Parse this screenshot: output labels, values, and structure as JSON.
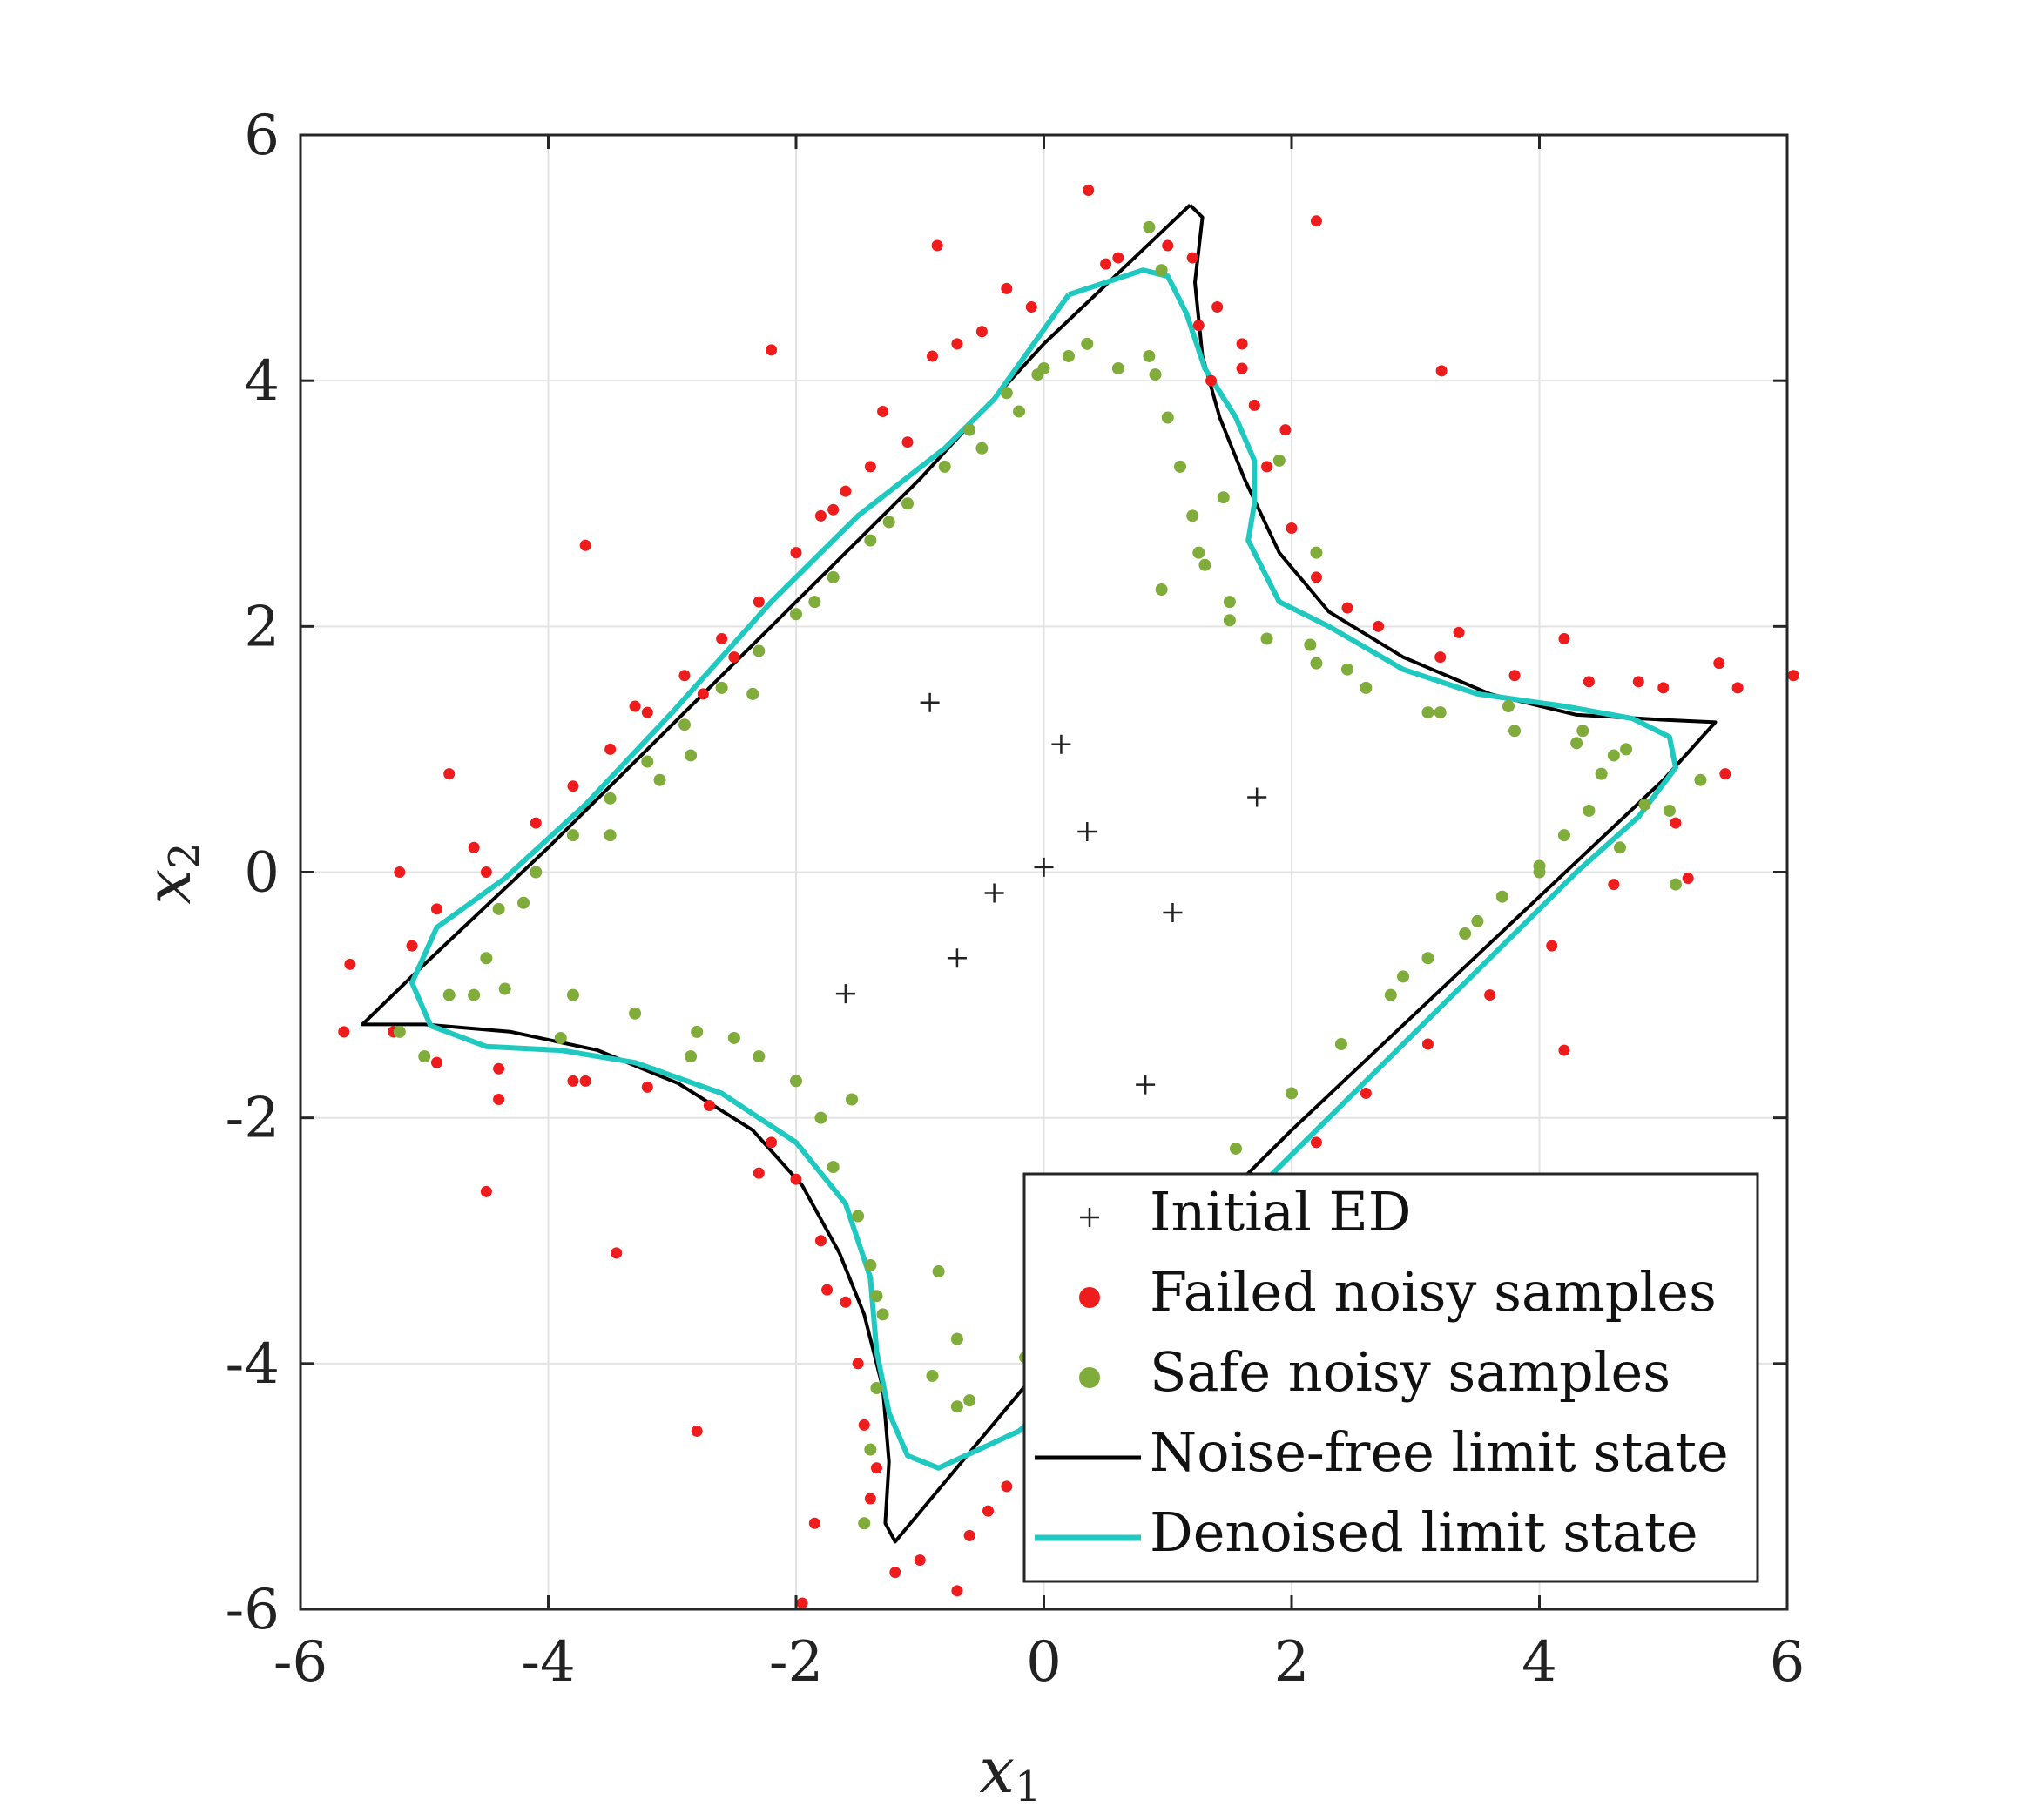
{
  "chart_data": {
    "type": "scatter",
    "title": "",
    "xlabel": "x",
    "xlabel_sub": "1",
    "ylabel": "x",
    "ylabel_sub": "2",
    "xlim": [
      -6,
      6
    ],
    "ylim": [
      -6,
      6
    ],
    "xticks": [
      -6,
      -4,
      -2,
      0,
      2,
      4,
      6
    ],
    "yticks": [
      -6,
      -4,
      -2,
      0,
      2,
      4,
      6
    ],
    "xtick_labels": [
      "-6",
      "-4",
      "-2",
      "0",
      "2",
      "4",
      "6"
    ],
    "ytick_labels": [
      "-6",
      "-4",
      "-2",
      "0",
      "2",
      "4",
      "6"
    ],
    "grid": true,
    "legend_position": "bottom-right",
    "colors": {
      "initial_ed": "#222222",
      "failed": "#ee1c1c",
      "safe": "#7fac3a",
      "noise_free": "#000000",
      "denoised": "#20c9c0"
    },
    "legend": [
      {
        "label": "Initial ED",
        "marker": "plus",
        "series": "initial_ed"
      },
      {
        "label": "Failed noisy samples",
        "marker": "dot",
        "series": "failed"
      },
      {
        "label": "Safe noisy samples",
        "marker": "dot",
        "series": "safe"
      },
      {
        "label": "Noise-free limit state",
        "marker": "line",
        "series": "noise_free"
      },
      {
        "label": "Denoised limit state",
        "marker": "line",
        "series": "denoised"
      }
    ],
    "initial_ed": [
      [
        -0.92,
        1.38
      ],
      [
        0.14,
        1.04
      ],
      [
        1.72,
        0.61
      ],
      [
        0.35,
        0.33
      ],
      [
        0.0,
        0.04
      ],
      [
        -0.4,
        -0.17
      ],
      [
        1.04,
        -0.33
      ],
      [
        -0.7,
        -0.7
      ],
      [
        -1.6,
        -0.99
      ],
      [
        0.82,
        -1.73
      ]
    ],
    "noise_free": [
      [
        1.18,
        5.43
      ],
      [
        1.28,
        5.33
      ],
      [
        1.22,
        4.8
      ],
      [
        1.28,
        4.2
      ],
      [
        1.42,
        3.7
      ],
      [
        1.62,
        3.2
      ],
      [
        1.9,
        2.6
      ],
      [
        2.3,
        2.12
      ],
      [
        2.9,
        1.75
      ],
      [
        3.6,
        1.45
      ],
      [
        4.3,
        1.28
      ],
      [
        5.0,
        1.24
      ],
      [
        5.42,
        1.22
      ],
      [
        5.0,
        0.75
      ],
      [
        4.0,
        -0.2
      ],
      [
        3.0,
        -1.15
      ],
      [
        2.0,
        -2.1
      ],
      [
        1.0,
        -3.1
      ],
      [
        0.0,
        -4.0
      ],
      [
        -1.2,
        -5.45
      ],
      [
        -1.28,
        -5.3
      ],
      [
        -1.25,
        -4.8
      ],
      [
        -1.3,
        -4.2
      ],
      [
        -1.45,
        -3.6
      ],
      [
        -1.65,
        -3.1
      ],
      [
        -1.95,
        -2.55
      ],
      [
        -2.35,
        -2.1
      ],
      [
        -2.95,
        -1.72
      ],
      [
        -3.6,
        -1.45
      ],
      [
        -4.3,
        -1.3
      ],
      [
        -5.0,
        -1.24
      ],
      [
        -5.5,
        -1.24
      ],
      [
        -5.0,
        -0.75
      ],
      [
        -4.0,
        0.2
      ],
      [
        -3.0,
        1.2
      ],
      [
        -2.0,
        2.2
      ],
      [
        -1.0,
        3.2
      ],
      [
        0.0,
        4.3
      ],
      [
        1.18,
        5.43
      ]
    ],
    "denoised": [
      [
        0.2,
        4.7
      ],
      [
        0.8,
        4.9
      ],
      [
        1.0,
        4.85
      ],
      [
        1.15,
        4.55
      ],
      [
        1.3,
        4.1
      ],
      [
        1.55,
        3.7
      ],
      [
        1.7,
        3.35
      ],
      [
        1.7,
        3.0
      ],
      [
        1.65,
        2.7
      ],
      [
        1.9,
        2.2
      ],
      [
        2.3,
        2.0
      ],
      [
        2.9,
        1.65
      ],
      [
        3.5,
        1.45
      ],
      [
        4.2,
        1.35
      ],
      [
        4.75,
        1.25
      ],
      [
        5.05,
        1.1
      ],
      [
        5.1,
        0.85
      ],
      [
        4.8,
        0.45
      ],
      [
        4.3,
        0.0
      ],
      [
        3.5,
        -0.8
      ],
      [
        2.5,
        -1.8
      ],
      [
        1.5,
        -2.8
      ],
      [
        0.5,
        -3.9
      ],
      [
        -0.2,
        -4.55
      ],
      [
        -0.85,
        -4.85
      ],
      [
        -1.1,
        -4.75
      ],
      [
        -1.25,
        -4.4
      ],
      [
        -1.35,
        -3.9
      ],
      [
        -1.4,
        -3.3
      ],
      [
        -1.6,
        -2.7
      ],
      [
        -2.0,
        -2.2
      ],
      [
        -2.6,
        -1.8
      ],
      [
        -3.3,
        -1.55
      ],
      [
        -3.9,
        -1.45
      ],
      [
        -4.5,
        -1.42
      ],
      [
        -4.95,
        -1.25
      ],
      [
        -5.1,
        -0.9
      ],
      [
        -4.9,
        -0.45
      ],
      [
        -4.35,
        -0.05
      ],
      [
        -3.7,
        0.55
      ],
      [
        -3.0,
        1.3
      ],
      [
        -2.2,
        2.2
      ],
      [
        -1.5,
        2.9
      ],
      [
        -0.8,
        3.45
      ],
      [
        -0.4,
        3.85
      ],
      [
        0.2,
        4.7
      ]
    ],
    "failed": [
      [
        0.36,
        5.55
      ],
      [
        1.2,
        5.0
      ],
      [
        2.2,
        5.3
      ],
      [
        -0.86,
        5.1
      ],
      [
        -2.2,
        4.25
      ],
      [
        3.21,
        4.08
      ],
      [
        -3.7,
        2.66
      ],
      [
        -4.8,
        0.8
      ],
      [
        -4.6,
        0.2
      ],
      [
        -5.2,
        0.0
      ],
      [
        -5.6,
        -0.75
      ],
      [
        -5.65,
        -1.3
      ],
      [
        -4.5,
        -2.6
      ],
      [
        -3.45,
        -3.1
      ],
      [
        -2.8,
        -4.55
      ],
      [
        -1.85,
        -5.3
      ],
      [
        -1.95,
        -5.95
      ],
      [
        -0.7,
        -5.85
      ],
      [
        4.2,
        -1.45
      ],
      [
        4.2,
        1.9
      ],
      [
        6.05,
        1.6
      ],
      [
        5.2,
        -0.05
      ],
      [
        0.5,
        4.95
      ],
      [
        -0.1,
        4.6
      ],
      [
        -0.5,
        4.4
      ],
      [
        -0.9,
        4.2
      ],
      [
        -1.1,
        3.5
      ],
      [
        -1.4,
        3.3
      ],
      [
        -1.6,
        3.1
      ],
      [
        -1.8,
        2.9
      ],
      [
        -2.0,
        2.6
      ],
      [
        -2.3,
        2.2
      ],
      [
        -2.6,
        1.9
      ],
      [
        -2.9,
        1.6
      ],
      [
        -3.2,
        1.3
      ],
      [
        -3.5,
        1.0
      ],
      [
        -3.8,
        0.7
      ],
      [
        -4.1,
        0.4
      ],
      [
        -4.5,
        0.0
      ],
      [
        -4.9,
        -0.3
      ],
      [
        -5.1,
        -0.6
      ],
      [
        -5.25,
        -1.3
      ],
      [
        -4.9,
        -1.55
      ],
      [
        -4.4,
        -1.6
      ],
      [
        -3.8,
        -1.7
      ],
      [
        -3.2,
        -1.75
      ],
      [
        -2.7,
        -1.9
      ],
      [
        -2.2,
        -2.2
      ],
      [
        -2.0,
        -2.5
      ],
      [
        -1.8,
        -3.0
      ],
      [
        -1.6,
        -3.5
      ],
      [
        -1.5,
        -4.0
      ],
      [
        -1.45,
        -4.5
      ],
      [
        -1.4,
        -5.1
      ],
      [
        -1.2,
        -5.7
      ],
      [
        -1.0,
        -5.6
      ],
      [
        -0.6,
        -5.4
      ],
      [
        -0.3,
        -5.0
      ],
      [
        0.3,
        -4.5
      ],
      [
        1.0,
        -3.2
      ],
      [
        1.5,
        -2.7
      ],
      [
        2.2,
        -2.2
      ],
      [
        2.6,
        -1.8
      ],
      [
        3.1,
        -1.4
      ],
      [
        3.6,
        -1.0
      ],
      [
        4.1,
        -0.6
      ],
      [
        4.6,
        -0.1
      ],
      [
        5.1,
        0.4
      ],
      [
        5.5,
        0.8
      ],
      [
        5.6,
        1.5
      ],
      [
        5.0,
        1.5
      ],
      [
        4.4,
        1.55
      ],
      [
        3.8,
        1.6
      ],
      [
        3.2,
        1.75
      ],
      [
        2.7,
        2.0
      ],
      [
        2.2,
        2.4
      ],
      [
        2.0,
        2.8
      ],
      [
        1.8,
        3.3
      ],
      [
        1.7,
        3.8
      ],
      [
        1.6,
        4.3
      ],
      [
        1.4,
        4.6
      ],
      [
        1.0,
        5.1
      ],
      [
        0.6,
        5.0
      ],
      [
        5.45,
        1.7
      ],
      [
        4.8,
        1.55
      ],
      [
        3.35,
        1.95
      ],
      [
        2.45,
        2.15
      ],
      [
        1.95,
        3.6
      ],
      [
        1.6,
        4.1
      ],
      [
        -0.3,
        4.75
      ],
      [
        -1.3,
        3.75
      ],
      [
        -2.5,
        1.75
      ],
      [
        -3.3,
        1.35
      ],
      [
        -4.4,
        -1.85
      ],
      [
        -3.7,
        -1.7
      ],
      [
        -2.3,
        -2.45
      ],
      [
        -1.75,
        -3.4
      ],
      [
        -1.35,
        -4.85
      ],
      [
        -0.45,
        -5.2
      ],
      [
        0.1,
        -4.75
      ],
      [
        -2.75,
        1.45
      ],
      [
        -1.7,
        2.95
      ],
      [
        -0.7,
        4.3
      ],
      [
        1.35,
        4.0
      ],
      [
        1.25,
        4.45
      ]
    ],
    "safe": [
      [
        0.85,
        5.25
      ],
      [
        0.2,
        4.2
      ],
      [
        0.0,
        4.1
      ],
      [
        -0.3,
        3.9
      ],
      [
        -0.6,
        3.6
      ],
      [
        -0.8,
        3.3
      ],
      [
        -1.1,
        3.0
      ],
      [
        -1.4,
        2.7
      ],
      [
        -1.7,
        2.4
      ],
      [
        -2.0,
        2.1
      ],
      [
        -2.3,
        1.8
      ],
      [
        -2.6,
        1.5
      ],
      [
        -2.9,
        1.2
      ],
      [
        -3.2,
        0.9
      ],
      [
        -3.5,
        0.6
      ],
      [
        -3.8,
        0.3
      ],
      [
        -4.1,
        0.0
      ],
      [
        -4.4,
        -0.3
      ],
      [
        -4.5,
        -0.7
      ],
      [
        -4.6,
        -1.0
      ],
      [
        -4.8,
        -1.0
      ],
      [
        -5.2,
        -1.3
      ],
      [
        -5.0,
        -1.5
      ],
      [
        -3.8,
        -1.0
      ],
      [
        -3.3,
        -1.15
      ],
      [
        -2.8,
        -1.3
      ],
      [
        -2.3,
        -1.5
      ],
      [
        -2.0,
        -1.7
      ],
      [
        -1.8,
        -2.0
      ],
      [
        -1.7,
        -2.4
      ],
      [
        -1.5,
        -2.8
      ],
      [
        -1.4,
        -3.2
      ],
      [
        -1.3,
        -3.6
      ],
      [
        -1.35,
        -4.2
      ],
      [
        -1.4,
        -4.7
      ],
      [
        -1.45,
        -5.3
      ],
      [
        -0.9,
        -4.1
      ],
      [
        -0.6,
        -4.3
      ],
      [
        -0.15,
        -3.95
      ],
      [
        1.55,
        -2.25
      ],
      [
        2.0,
        -1.8
      ],
      [
        2.4,
        -1.4
      ],
      [
        2.8,
        -1.0
      ],
      [
        3.1,
        -0.7
      ],
      [
        3.4,
        -0.5
      ],
      [
        3.7,
        -0.2
      ],
      [
        4.0,
        0.0
      ],
      [
        4.2,
        0.3
      ],
      [
        4.4,
        0.5
      ],
      [
        4.5,
        0.8
      ],
      [
        4.7,
        1.0
      ],
      [
        4.3,
        1.05
      ],
      [
        3.8,
        1.15
      ],
      [
        3.2,
        1.3
      ],
      [
        2.6,
        1.5
      ],
      [
        2.2,
        1.7
      ],
      [
        1.8,
        1.9
      ],
      [
        1.5,
        2.2
      ],
      [
        1.3,
        2.5
      ],
      [
        1.2,
        2.9
      ],
      [
        1.1,
        3.3
      ],
      [
        1.0,
        3.7
      ],
      [
        0.9,
        4.05
      ],
      [
        0.85,
        4.2
      ],
      [
        5.1,
        -0.1
      ],
      [
        4.65,
        0.2
      ],
      [
        4.6,
        0.95
      ],
      [
        4.35,
        1.15
      ],
      [
        3.1,
        1.3
      ],
      [
        2.45,
        1.65
      ],
      [
        1.5,
        2.05
      ],
      [
        1.25,
        2.6
      ],
      [
        0.95,
        2.3
      ],
      [
        1.9,
        3.35
      ],
      [
        2.2,
        2.6
      ],
      [
        -0.2,
        3.75
      ],
      [
        -2.85,
        0.95
      ],
      [
        -4.2,
        -0.25
      ],
      [
        -4.35,
        -0.95
      ],
      [
        -3.9,
        -1.35
      ],
      [
        -2.85,
        -1.5
      ],
      [
        -2.5,
        -1.35
      ],
      [
        -1.55,
        -1.85
      ],
      [
        -1.35,
        -3.45
      ],
      [
        -0.85,
        -3.25
      ],
      [
        -0.7,
        -4.35
      ],
      [
        -0.7,
        -3.8
      ],
      [
        0.35,
        -4.15
      ],
      [
        1.1,
        -2.65
      ],
      [
        2.9,
        -0.85
      ],
      [
        3.5,
        -0.4
      ],
      [
        4.0,
        0.05
      ],
      [
        -3.5,
        0.3
      ],
      [
        -3.1,
        0.75
      ],
      [
        -2.35,
        1.45
      ],
      [
        -1.85,
        2.2
      ],
      [
        -1.25,
        2.85
      ],
      [
        -0.5,
        3.45
      ],
      [
        0.6,
        4.1
      ],
      [
        0.35,
        4.3
      ],
      [
        0.95,
        4.9
      ],
      [
        -0.05,
        4.05
      ],
      [
        4.85,
        0.55
      ],
      [
        5.05,
        0.5
      ],
      [
        5.3,
        0.75
      ],
      [
        3.75,
        1.35
      ],
      [
        2.15,
        1.85
      ],
      [
        1.45,
        3.05
      ]
    ]
  }
}
